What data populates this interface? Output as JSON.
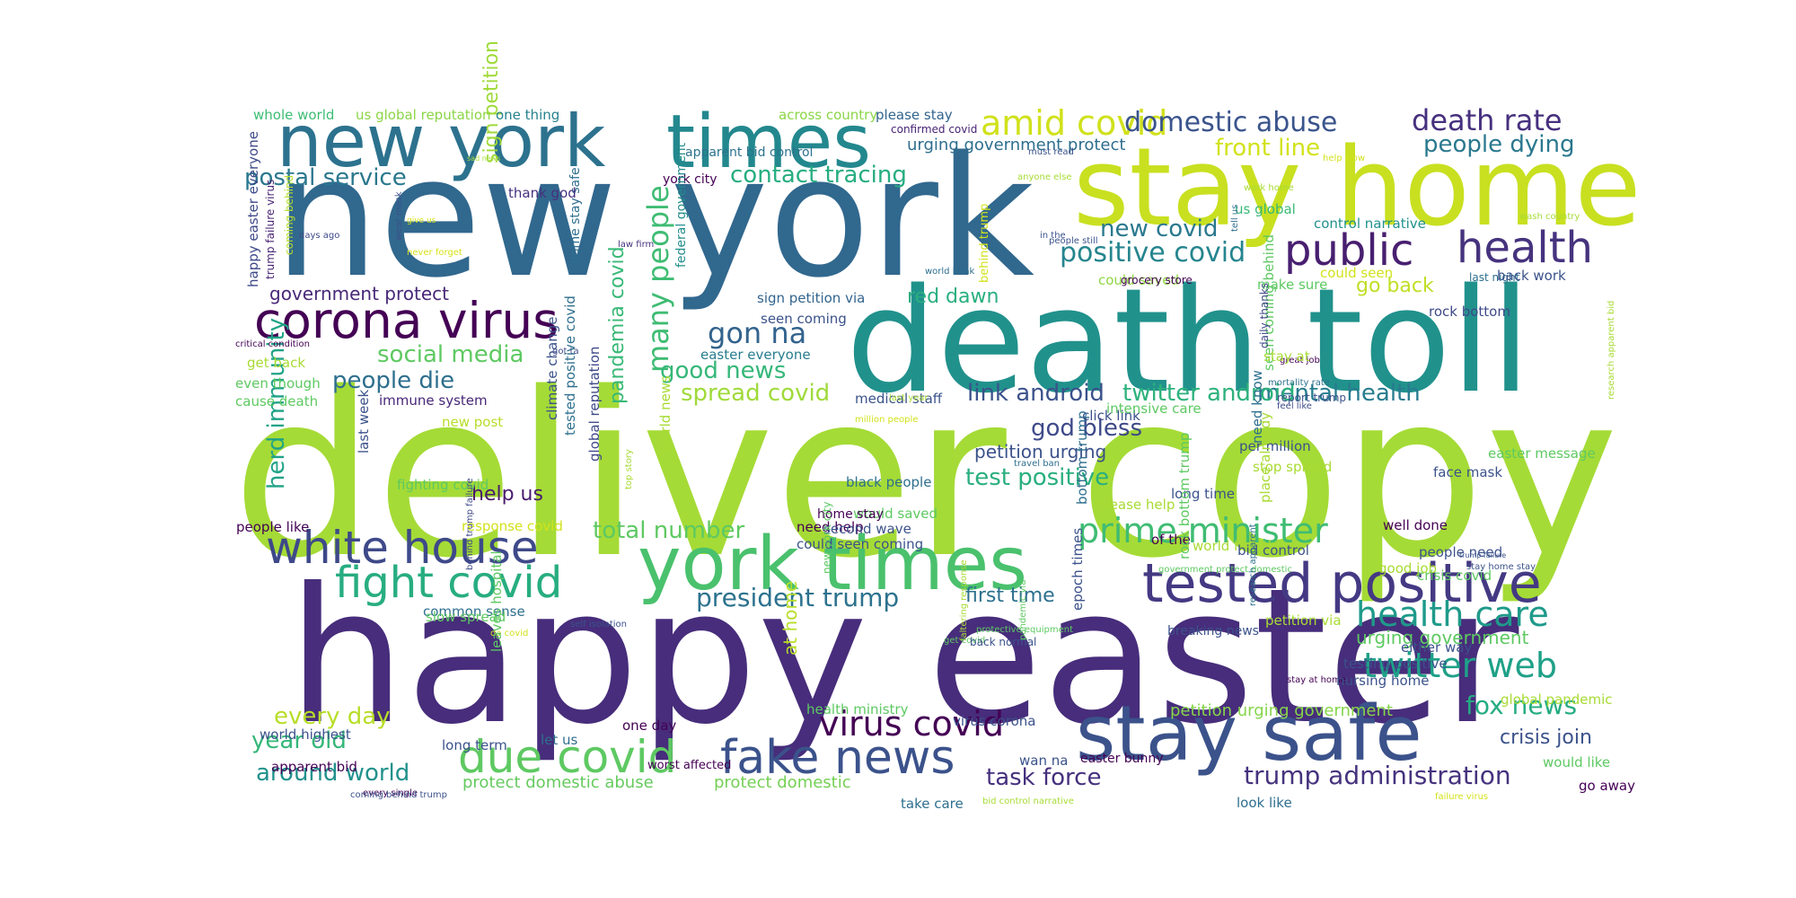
{
  "words": [
    {
      "text": "deliver copy",
      "color": "#a5db36",
      "rot": 0
    },
    {
      "text": "happy easter",
      "color": "#472d7b",
      "rot": 0
    },
    {
      "text": "new york",
      "color": "#31688e",
      "rot": 0
    },
    {
      "text": "death toll",
      "color": "#21918c",
      "rot": 0
    },
    {
      "text": "stay home",
      "color": "#c8e020",
      "rot": 0
    },
    {
      "text": "new york",
      "color": "#2c728e",
      "rot": 0
    },
    {
      "text": "times",
      "color": "#23888e",
      "rot": 0
    },
    {
      "text": "york times",
      "color": "#4ac16d",
      "rot": 0
    },
    {
      "text": "stay safe",
      "color": "#3b528b",
      "rot": 0
    },
    {
      "text": "tested positive",
      "color": "#443983",
      "rot": 0
    },
    {
      "text": "corona virus",
      "color": "#440154",
      "rot": 0
    },
    {
      "text": "white house",
      "color": "#3e4989",
      "rot": 0
    },
    {
      "text": "public",
      "color": "#481f70",
      "rot": 0
    },
    {
      "text": "health",
      "color": "#46337e",
      "rot": 0
    },
    {
      "text": "fight covid",
      "color": "#27ad81",
      "rot": 0
    },
    {
      "text": "fake news",
      "color": "#3b528b",
      "rot": 0
    },
    {
      "text": "due covid",
      "color": "#5ec962",
      "rot": 0
    },
    {
      "text": "prime minister",
      "color": "#3fbc73",
      "rot": 0
    },
    {
      "text": "health care",
      "color": "#1f9a8a",
      "rot": 0
    },
    {
      "text": "twitter web",
      "color": "#1fa188",
      "rot": 0
    },
    {
      "text": "amid covid",
      "color": "#d0e11c",
      "rot": 0
    },
    {
      "text": "virus covid",
      "color": "#440154",
      "rot": 0
    },
    {
      "text": "many people",
      "color": "#3fbc73",
      "rot": 90
    },
    {
      "text": "gon na",
      "color": "#33638d",
      "rot": 0
    },
    {
      "text": "death rate",
      "color": "#46307e",
      "rot": 0
    },
    {
      "text": "domestic abuse",
      "color": "#3a548c",
      "rot": 0
    },
    {
      "text": "positive covid",
      "color": "#25858e",
      "rot": 0
    },
    {
      "text": "president trump",
      "color": "#2c728e",
      "rot": 0
    },
    {
      "text": "trump administration",
      "color": "#46337e",
      "rot": 0
    },
    {
      "text": "fox news",
      "color": "#25ac82",
      "rot": 0
    },
    {
      "text": "contact tracing",
      "color": "#26ad81",
      "rot": 0
    },
    {
      "text": "postal service",
      "color": "#2a788e",
      "rot": 0
    },
    {
      "text": "mental health",
      "color": "#287c8e",
      "rot": 0
    },
    {
      "text": "twitter android",
      "color": "#2db27d",
      "rot": 0
    },
    {
      "text": "link android",
      "color": "#3b528b",
      "rot": 0
    },
    {
      "text": "spread covid",
      "color": "#9fda3a",
      "rot": 0
    },
    {
      "text": "good news",
      "color": "#35b779",
      "rot": 0
    },
    {
      "text": "social media",
      "color": "#5ec962",
      "rot": 0
    },
    {
      "text": "people die",
      "color": "#2e6f8e",
      "rot": 0
    },
    {
      "text": "test positive",
      "color": "#29af7f",
      "rot": 0
    },
    {
      "text": "total number",
      "color": "#5ec962",
      "rot": 0
    },
    {
      "text": "god bless",
      "color": "#3e4989",
      "rot": 0
    },
    {
      "text": "new covid",
      "color": "#2a788e",
      "rot": 0
    },
    {
      "text": "front line",
      "color": "#d2e21b",
      "rot": 0
    },
    {
      "text": "people dying",
      "color": "#2a788e",
      "rot": 0
    },
    {
      "text": "herd immunity",
      "color": "#20a386",
      "rot": 270
    },
    {
      "text": "year old",
      "color": "#35b779",
      "rot": 0
    },
    {
      "text": "around world",
      "color": "#21918c",
      "rot": 0
    },
    {
      "text": "every day",
      "color": "#b8de29",
      "rot": 0
    },
    {
      "text": "task force",
      "color": "#46307e",
      "rot": 0
    },
    {
      "text": "crisis join",
      "color": "#3b528b",
      "rot": 0
    },
    {
      "text": "red dawn",
      "color": "#29af7f",
      "rot": 0
    },
    {
      "text": "go back",
      "color": "#c0df25",
      "rot": 0
    },
    {
      "text": "first time",
      "color": "#2d708e",
      "rot": 0
    },
    {
      "text": "sign petition",
      "color": "#a0da39",
      "rot": 90
    },
    {
      "text": "pandemia covid",
      "color": "#38b977",
      "rot": 90
    },
    {
      "text": "help us",
      "color": "#481a6c",
      "rot": 0
    },
    {
      "text": "government protect",
      "color": "#482878",
      "rot": 0
    },
    {
      "text": "petition urging",
      "color": "#3b528b",
      "rot": 0
    },
    {
      "text": "urging government",
      "color": "#5ec962",
      "rot": 0
    },
    {
      "text": "at home",
      "color": "#b8de29",
      "rot": 90
    },
    {
      "text": "protect domestic abuse",
      "color": "#65cb5e",
      "rot": 0
    },
    {
      "text": "protect domestic",
      "color": "#75d054",
      "rot": 0
    },
    {
      "text": "petition urging government",
      "color": "#86d549",
      "rot": 0
    },
    {
      "text": "urging government protect",
      "color": "#2e6e8e",
      "rot": 0
    },
    {
      "text": "whole world",
      "color": "#3dbc74",
      "rot": 0
    },
    {
      "text": "us global reputation",
      "color": "#8bd646",
      "rot": 0
    },
    {
      "text": "one thing",
      "color": "#26828e",
      "rot": 0
    },
    {
      "text": "across country",
      "color": "#8bd646",
      "rot": 0
    },
    {
      "text": "please stay",
      "color": "#32648e",
      "rot": 0
    },
    {
      "text": "confirmed covid",
      "color": "#482475",
      "rot": 0
    },
    {
      "text": "happy easter everyone",
      "color": "#3e4989",
      "rot": 270
    },
    {
      "text": "trump failure virus",
      "color": "#482475",
      "rot": 270
    },
    {
      "text": "coming behind",
      "color": "#b8de29",
      "rot": 270
    },
    {
      "text": "wear mask",
      "color": "#3b528b",
      "rot": 270
    },
    {
      "text": "give us",
      "color": "#d2e21b",
      "rot": 0
    },
    {
      "text": "never forget",
      "color": "#d8e219",
      "rot": 0
    },
    {
      "text": "days ago",
      "color": "#3e4989",
      "rot": 0
    },
    {
      "text": "sad news",
      "color": "#a8db34",
      "rot": 0
    },
    {
      "text": "home stay safe",
      "color": "#2e6f8e",
      "rot": 90
    },
    {
      "text": "york city",
      "color": "#440154",
      "rot": 0
    },
    {
      "text": "law firm",
      "color": "#46337e",
      "rot": 0
    },
    {
      "text": "federal government",
      "color": "#228c8d",
      "rot": 90
    },
    {
      "text": "apparent bid control",
      "color": "#2c728e",
      "rot": 0
    },
    {
      "text": "thank god",
      "color": "#46307e",
      "rot": 0
    },
    {
      "text": "sign petition via",
      "color": "#32648e",
      "rot": 0
    },
    {
      "text": "seen coming",
      "color": "#3b528b",
      "rot": 0
    },
    {
      "text": "easter everyone",
      "color": "#287d8e",
      "rot": 0
    },
    {
      "text": "behind trump",
      "color": "#d2e21b",
      "rot": 90
    },
    {
      "text": "anyone else",
      "color": "#a8db34",
      "rot": 0
    },
    {
      "text": "world bank",
      "color": "#2e6f8e",
      "rot": 0
    },
    {
      "text": "people still",
      "color": "#3b528b",
      "rot": 0
    },
    {
      "text": "in the",
      "color": "#3b528b",
      "rot": 0
    },
    {
      "text": "could saved",
      "color": "#8fd744",
      "rot": 0
    },
    {
      "text": "grocery store",
      "color": "#440154",
      "rot": 0
    },
    {
      "text": "make sure",
      "color": "#5ec962",
      "rot": 0
    },
    {
      "text": "could seen",
      "color": "#d2e21b",
      "rot": 0
    },
    {
      "text": "last night",
      "color": "#2e6f8e",
      "rot": 0
    },
    {
      "text": "back work",
      "color": "#3b528b",
      "rot": 0
    },
    {
      "text": "rock bottom",
      "color": "#3e4989",
      "rot": 0
    },
    {
      "text": "us global",
      "color": "#38b977",
      "rot": 0
    },
    {
      "text": "control narrative",
      "color": "#21918c",
      "rot": 0
    },
    {
      "text": "wash country",
      "color": "#a8db34",
      "rot": 0
    },
    {
      "text": "work home",
      "color": "#a8db34",
      "rot": 0
    },
    {
      "text": "help slow",
      "color": "#d2e21b",
      "rot": 0
    },
    {
      "text": "must read",
      "color": "#3b528b",
      "rot": 0
    },
    {
      "text": "tell us",
      "color": "#2e6f8e",
      "rot": 90
    },
    {
      "text": "research apparent bid",
      "color": "#a8db34",
      "rot": 90
    },
    {
      "text": "critical condition",
      "color": "#440154",
      "rot": 0
    },
    {
      "text": "get back",
      "color": "#a8db34",
      "rot": 0
    },
    {
      "text": "even though",
      "color": "#5ec962",
      "rot": 0
    },
    {
      "text": "cause death",
      "color": "#5ec962",
      "rot": 0
    },
    {
      "text": "immune system",
      "color": "#482878",
      "rot": 0
    },
    {
      "text": "new post",
      "color": "#b8de29",
      "rot": 0
    },
    {
      "text": "got ta",
      "color": "#3e4989",
      "rot": 0
    },
    {
      "text": "tested positive covid",
      "color": "#2e6f8e",
      "rot": 90
    },
    {
      "text": "global reputation",
      "color": "#3e4989",
      "rot": 90
    },
    {
      "text": "climate change",
      "color": "#3b528b",
      "rot": 90
    },
    {
      "text": "last week",
      "color": "#3b528b",
      "rot": 90
    },
    {
      "text": "fighting covid",
      "color": "#5ec962",
      "rot": 0
    },
    {
      "text": "world news",
      "color": "#a8db34",
      "rot": 90
    },
    {
      "text": "top story",
      "color": "#a8db34",
      "rot": 90
    },
    {
      "text": "medical staff",
      "color": "#3b528b",
      "rot": 0
    },
    {
      "text": "million people",
      "color": "#d2e21b",
      "rot": 0
    },
    {
      "text": "last year",
      "color": "#a8db34",
      "rot": 0
    },
    {
      "text": "click link",
      "color": "#3b528b",
      "rot": 0
    },
    {
      "text": "intensive care",
      "color": "#5ec962",
      "rot": 0
    },
    {
      "text": "seen coming behind",
      "color": "#5ec962",
      "rot": 90
    },
    {
      "text": "daily thanks",
      "color": "#3e4989",
      "rot": 90
    },
    {
      "text": "mortality rate",
      "color": "#2e6f8e",
      "rot": 0
    },
    {
      "text": "feel like",
      "color": "#3e4989",
      "rot": 0
    },
    {
      "text": "report trump",
      "color": "#3b528b",
      "rot": 0
    },
    {
      "text": "great job",
      "color": "#440154",
      "rot": 0
    },
    {
      "text": "stay at",
      "color": "#a8db34",
      "rot": 0
    },
    {
      "text": "need know",
      "color": "#2e6f8e",
      "rot": 90
    },
    {
      "text": "per million",
      "color": "#3b528b",
      "rot": 0
    },
    {
      "text": "stop spread",
      "color": "#a8db34",
      "rot": 0
    },
    {
      "text": "long time",
      "color": "#3b528b",
      "rot": 0
    },
    {
      "text": "travel ban",
      "color": "#2e6f8e",
      "rot": 0
    },
    {
      "text": "black people",
      "color": "#2e6f8e",
      "rot": 0
    },
    {
      "text": "would saved",
      "color": "#5ec962",
      "rot": 0
    },
    {
      "text": "please help",
      "color": "#a8db34",
      "rot": 0
    },
    {
      "text": "home stay",
      "color": "#440154",
      "rot": 0
    },
    {
      "text": "bottom trump",
      "color": "#2e6f8e",
      "rot": 90
    },
    {
      "text": "place already",
      "color": "#a8db34",
      "rot": 90
    },
    {
      "text": "easter message",
      "color": "#5ec962",
      "rot": 0
    },
    {
      "text": "face mask",
      "color": "#3b528b",
      "rot": 0
    },
    {
      "text": "people need",
      "color": "#3b528b",
      "rot": 0
    },
    {
      "text": "crisis covid",
      "color": "#5ec962",
      "rot": 0
    },
    {
      "text": "well done",
      "color": "#440154",
      "rot": 0
    },
    {
      "text": "stay home stay",
      "color": "#3b528b",
      "rot": 0
    },
    {
      "text": "trump failure",
      "color": "#3b528b",
      "rot": 0
    },
    {
      "text": "people like",
      "color": "#440154",
      "rot": 0
    },
    {
      "text": "response covid",
      "color": "#d2e21b",
      "rot": 0
    },
    {
      "text": "need help",
      "color": "#440154",
      "rot": 0
    },
    {
      "text": "second wave",
      "color": "#3b528b",
      "rot": 0
    },
    {
      "text": "could seen coming",
      "color": "#3b528b",
      "rot": 0
    },
    {
      "text": "of the",
      "color": "#440154",
      "rot": 0
    },
    {
      "text": "world health",
      "color": "#a8db34",
      "rot": 0
    },
    {
      "text": "bid control",
      "color": "#3b528b",
      "rot": 0
    },
    {
      "text": "good job",
      "color": "#a8db34",
      "rot": 0
    },
    {
      "text": "government protect domestic",
      "color": "#5ec962",
      "rot": 0
    },
    {
      "text": "rock bottom trump",
      "color": "#5ec962",
      "rot": 90
    },
    {
      "text": "behind trump failure",
      "color": "#3e4989",
      "rot": 90
    },
    {
      "text": "new york city",
      "color": "#5ec962",
      "rot": 90
    },
    {
      "text": "common sense",
      "color": "#2e6f8e",
      "rot": 0
    },
    {
      "text": "slow spread",
      "color": "#5ec962",
      "rot": 0
    },
    {
      "text": "self isolation",
      "color": "#3b528b",
      "rot": 0
    },
    {
      "text": "protective equipment",
      "color": "#5ec962",
      "rot": 0
    },
    {
      "text": "breaking news",
      "color": "#3b528b",
      "rot": 0
    },
    {
      "text": "petition via",
      "color": "#a8db34",
      "rot": 0
    },
    {
      "text": "research apparent",
      "color": "#2e6f8e",
      "rot": 90
    },
    {
      "text": "epoch times",
      "color": "#3b528b",
      "rot": 90
    },
    {
      "text": "either way",
      "color": "#3b528b",
      "rot": 0
    },
    {
      "text": "da covid",
      "color": "#d2e21b",
      "rot": 0
    },
    {
      "text": "leaves hospital",
      "color": "#5ec962",
      "rot": 90
    },
    {
      "text": "faltering response",
      "color": "#a8db34",
      "rot": 90
    },
    {
      "text": "get covid",
      "color": "#5ec962",
      "rot": 0
    },
    {
      "text": "back normal",
      "color": "#3b528b",
      "rot": 0
    },
    {
      "text": "pandemic via",
      "color": "#5ec962",
      "rot": 90
    },
    {
      "text": "stay at home",
      "color": "#440154",
      "rot": 0
    },
    {
      "text": "testing positive",
      "color": "#3b528b",
      "rot": 0
    },
    {
      "text": "nursing home",
      "color": "#3b528b",
      "rot": 0
    },
    {
      "text": "global pandemic",
      "color": "#a8db34",
      "rot": 0
    },
    {
      "text": "health ministry",
      "color": "#5ec962",
      "rot": 0
    },
    {
      "text": "world highest",
      "color": "#3b528b",
      "rot": 0
    },
    {
      "text": "long term",
      "color": "#3b528b",
      "rot": 0
    },
    {
      "text": "let us",
      "color": "#2e6f8e",
      "rot": 0
    },
    {
      "text": "one day",
      "color": "#440154",
      "rot": 0
    },
    {
      "text": "virus corona",
      "color": "#3b528b",
      "rot": 0
    },
    {
      "text": "worst affected",
      "color": "#440154",
      "rot": 0
    },
    {
      "text": "easter bunny",
      "color": "#440154",
      "rot": 0
    },
    {
      "text": "wan na",
      "color": "#3b528b",
      "rot": 0
    },
    {
      "text": "would like",
      "color": "#5ec962",
      "rot": 0
    },
    {
      "text": "apparent bid",
      "color": "#440154",
      "rot": 0
    },
    {
      "text": "every single",
      "color": "#440154",
      "rot": 0
    },
    {
      "text": "coming behind trump",
      "color": "#3b528b",
      "rot": 0
    },
    {
      "text": "take care",
      "color": "#2e6f8e",
      "rot": 0
    },
    {
      "text": "bid control narrative",
      "color": "#a8db34",
      "rot": 0
    },
    {
      "text": "look like",
      "color": "#2e6f8e",
      "rot": 0
    },
    {
      "text": "failure virus",
      "color": "#d2e21b",
      "rot": 0
    },
    {
      "text": "go away",
      "color": "#440154",
      "rot": 0
    }
  ]
}
